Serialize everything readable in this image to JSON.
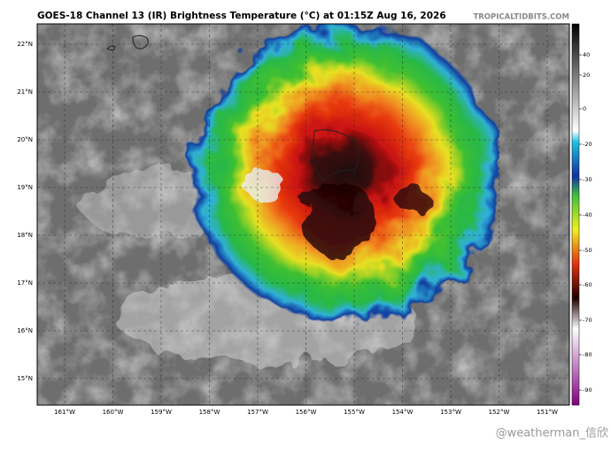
{
  "title": "GOES-18 Channel 13 (IR) Brightness Temperature (°C) at 01:15Z Aug 16, 2026",
  "source": "TROPICALTIDBITS.COM",
  "lat_labels": [
    "22°N",
    "21°N",
    "20°N",
    "19°N",
    "18°N",
    "17°N",
    "16°N",
    "15°N"
  ],
  "lon_labels": [
    "161°W",
    "160°W",
    "159°W",
    "158°W",
    "157°W",
    "156°W",
    "155°W",
    "154°W",
    "153°W",
    "152°W",
    "151°W"
  ],
  "colorbar_ticks": [
    40,
    20,
    0,
    -20,
    -30,
    -40,
    -50,
    -60,
    -70,
    -80,
    -90
  ],
  "watermark": "@weatherman_信欣"
}
